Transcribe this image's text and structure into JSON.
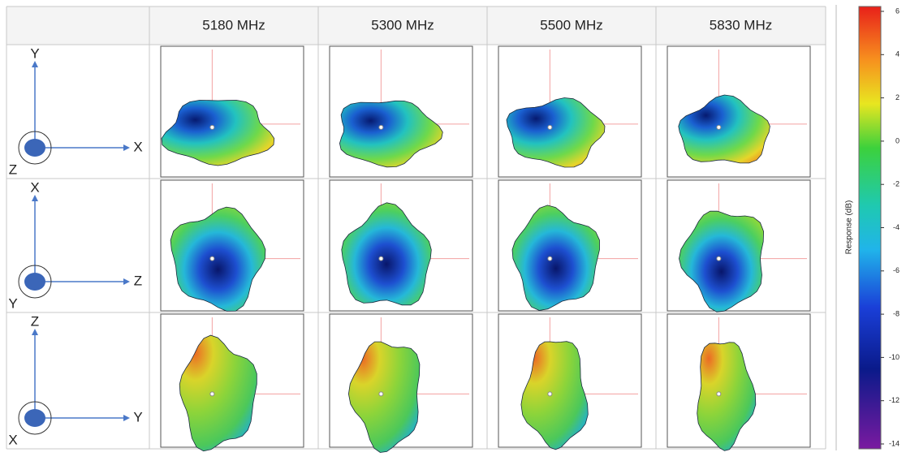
{
  "columns": [
    "5180 MHz",
    "5300 MHz",
    "5500 MHz",
    "5830 MHz"
  ],
  "rows": [
    {
      "up": "Y",
      "right": "X",
      "out": "Z"
    },
    {
      "up": "X",
      "right": "Z",
      "out": "Y"
    },
    {
      "up": "Z",
      "right": "Y",
      "out": "X"
    }
  ],
  "colorbar": {
    "label": "Response (dB)",
    "ticks": [
      6,
      4,
      2,
      0,
      -2,
      -4,
      -6,
      -8,
      -10,
      -12,
      -14
    ]
  }
}
